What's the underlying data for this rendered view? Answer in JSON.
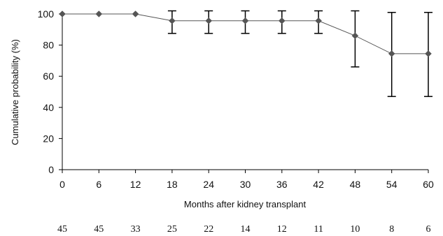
{
  "chart_data": {
    "type": "line",
    "xlabel": "Months after kidney transplant",
    "ylabel": "Cumulative probability (%)",
    "xlim": [
      0,
      60
    ],
    "ylim": [
      0,
      100
    ],
    "x_ticks": [
      0,
      6,
      12,
      18,
      24,
      30,
      36,
      42,
      48,
      54,
      60
    ],
    "y_ticks": [
      0,
      20,
      40,
      60,
      80,
      100
    ],
    "grid": false,
    "legend": "none",
    "marker": "diamond",
    "series_color": "#555555",
    "series": [
      {
        "x": [
          0,
          6,
          12,
          18,
          24,
          30,
          36,
          42,
          48,
          54,
          60
        ],
        "y": [
          100,
          100,
          100,
          95.6,
          95.6,
          95.6,
          95.6,
          95.6,
          86,
          74.5,
          74.5
        ],
        "error_low": [
          null,
          null,
          null,
          87.5,
          87.5,
          87.5,
          87.5,
          87.5,
          66,
          47,
          47
        ],
        "error_high": [
          null,
          null,
          null,
          102,
          102,
          102,
          102,
          102,
          102,
          101,
          101
        ]
      }
    ],
    "at_risk": [
      45,
      45,
      33,
      25,
      22,
      14,
      12,
      11,
      10,
      8,
      6
    ]
  }
}
